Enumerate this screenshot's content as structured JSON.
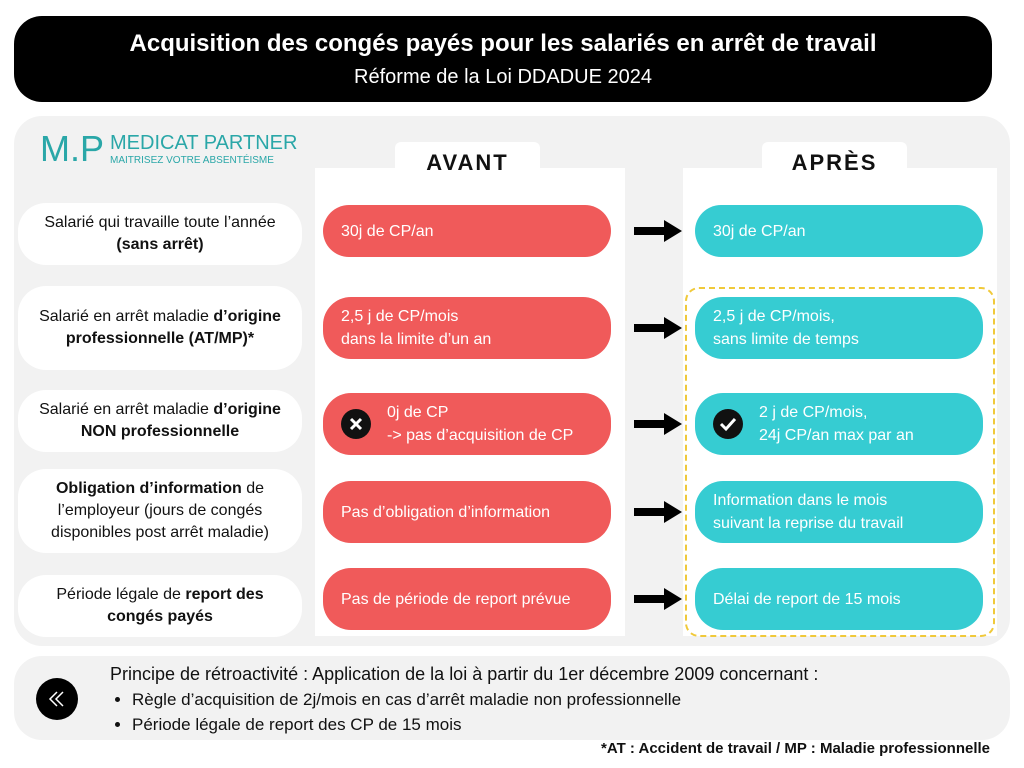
{
  "header": {
    "title": "Acquisition des congés payés pour les salariés en arrêt de travail",
    "subtitle": "Réforme de la Loi DDADUE 2024"
  },
  "logo": {
    "initials": "M.P",
    "name": "MEDICAT PARTNER",
    "tagline": "MAITRISEZ VOTRE ABSENTÉISME"
  },
  "columns": {
    "before": "AVANT",
    "after": "APRÈS"
  },
  "rows": [
    {
      "label": [
        {
          "text": "Salarié qui travaille toute l’année ",
          "bold": false
        },
        {
          "text": "(sans arrêt)",
          "bold": true
        }
      ],
      "before": [
        "30j de CP/an"
      ],
      "after": [
        "30j de CP/an"
      ]
    },
    {
      "label": [
        {
          "text": "Salarié en arrêt maladie ",
          "bold": false
        },
        {
          "text": "d’origine professionnelle (AT/MP)*",
          "bold": true
        }
      ],
      "before": [
        "2,5 j de CP/mois",
        "dans la limite d’un an"
      ],
      "after": [
        "2,5 j de CP/mois,",
        "sans limite de temps"
      ]
    },
    {
      "label": [
        {
          "text": "Salarié en arrêt maladie ",
          "bold": false
        },
        {
          "text": "d’origine NON professionnelle",
          "bold": true
        }
      ],
      "before": [
        "0j de CP",
        "-> pas d’acquisition de CP"
      ],
      "after": [
        "2 j de CP/mois,",
        "24j CP/an max par an"
      ]
    },
    {
      "label": [
        {
          "text": "Obligation d’information",
          "bold": true
        },
        {
          "text": " de l’employeur (jours de congés disponibles post arrêt maladie)",
          "bold": false
        }
      ],
      "before": [
        "Pas d’obligation d’information"
      ],
      "after": [
        "Information dans le mois",
        "suivant la reprise du travail"
      ]
    },
    {
      "label": [
        {
          "text": "Période légale de ",
          "bold": false
        },
        {
          "text": "report des congés payés",
          "bold": true
        }
      ],
      "before": [
        "Pas de période de report prévue"
      ],
      "after": [
        "Délai de report de 15 mois"
      ]
    }
  ],
  "note": {
    "title": "Principe de rétroactivité : Application de la loi à partir du 1er décembre 2009 concernant :",
    "items": [
      "Règle d’acquisition de 2j/mois en cas d’arrêt maladie non professionnelle",
      "Période légale de report des CP de 15 mois"
    ]
  },
  "footnote": "*AT : Accident de travail / MP : Maladie professionnelle"
}
